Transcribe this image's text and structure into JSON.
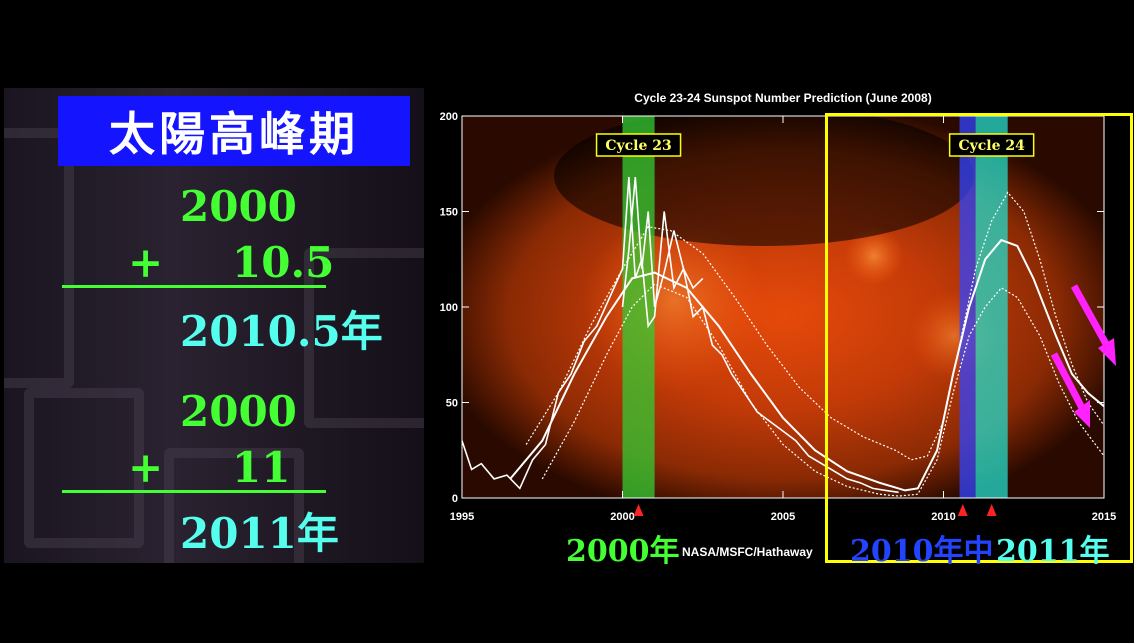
{
  "left": {
    "title": "太陽高峰期",
    "calc1": {
      "base": "2000",
      "op": "+",
      "add": "10.5",
      "result": "2010.5年"
    },
    "calc2": {
      "base": "2000",
      "op": "+",
      "add": "11",
      "result": "2011年"
    }
  },
  "captions": {
    "c2000": "2000年",
    "credit": "NASA/MSFC/Hathaway",
    "c2010": "2010年中",
    "c2011": "2011年"
  },
  "chart_data": {
    "type": "line",
    "title": "Cycle 23-24 Sunspot Number Prediction (June 2008)",
    "xlabel": "",
    "ylabel": "",
    "xlim": [
      1995,
      2015
    ],
    "ylim": [
      0,
      200
    ],
    "xticks": [
      1995,
      2000,
      2005,
      2010,
      2015
    ],
    "yticks": [
      0,
      50,
      100,
      150,
      200
    ],
    "grid": false,
    "annotations": [
      "Cycle 23",
      "Cycle 24"
    ],
    "colors": {
      "observed": "#ffffff",
      "band23": "#33cc33",
      "band24a": "#3344ff",
      "band24b": "#22ddcc",
      "highlight": "#ffff00",
      "arrow": "#ff22ff",
      "marker": "#ff2222"
    },
    "bands": [
      {
        "label": "Cycle 23",
        "x0": 2000.0,
        "x1": 2001.0
      },
      {
        "label": "",
        "x0": 2010.5,
        "x1": 2011.0
      },
      {
        "label": "Cycle 24",
        "x0": 2011.0,
        "x1": 2012.0
      }
    ],
    "markers": [
      2000.5,
      2010.6,
      2011.5
    ],
    "series": [
      {
        "x": [
          1995.0,
          1995.3,
          1995.6,
          1996.0,
          1996.4,
          1996.8,
          1997.2,
          1997.6,
          1998.0,
          1998.4,
          1998.8,
          1999.2,
          1999.6,
          2000.0,
          2000.2,
          2000.4,
          2000.6,
          2000.8,
          2001.0,
          2001.3,
          2001.6,
          2001.9,
          2002.2,
          2002.5,
          2002.8,
          2003.1,
          2003.4,
          2003.8,
          2004.2,
          2004.6,
          2005.0,
          2005.4,
          2005.8,
          2006.2,
          2006.6,
          2007.0,
          2007.4,
          2007.8,
          2008.2,
          2008.6
        ],
        "values": [
          30,
          15,
          18,
          10,
          12,
          5,
          20,
          28,
          55,
          65,
          82,
          90,
          105,
          120,
          168,
          115,
          125,
          90,
          95,
          150,
          110,
          120,
          95,
          100,
          80,
          75,
          65,
          55,
          45,
          40,
          35,
          30,
          22,
          18,
          14,
          10,
          8,
          5,
          4,
          3
        ]
      },
      {
        "x": [
          2000.0,
          2000.2,
          2000.4,
          2000.6,
          2000.8,
          2001.0,
          2001.3,
          2001.6,
          2001.9,
          2002.2,
          2002.5
        ],
        "values": [
          100,
          130,
          168,
          120,
          150,
          100,
          118,
          140,
          120,
          110,
          115
        ]
      },
      {
        "x": [
          1997.0,
          1998,
          1999,
          2000,
          2000.8,
          2001.5,
          2002.5,
          2003.5,
          2004.5,
          2005.5,
          2006.5,
          2007.5,
          2008.5,
          2009.0,
          2009.5,
          2010.0,
          2010.5,
          2011.0,
          2011.5,
          2012.0,
          2012.5,
          2013.0,
          2013.5,
          2014.0,
          2014.5,
          2015.0
        ],
        "values": [
          28,
          55,
          90,
          120,
          142,
          140,
          128,
          105,
          80,
          58,
          42,
          32,
          25,
          20,
          22,
          40,
          80,
          120,
          145,
          160,
          150,
          125,
          95,
          70,
          50,
          38
        ]
      },
      {
        "x": [
          1996.5,
          1997.5,
          1998.5,
          1999.5,
          2000.3,
          2001.0,
          2002.0,
          2003.0,
          2004.0,
          2005.0,
          2006.0,
          2007.0,
          2008.0,
          2008.8,
          2009.2,
          2009.8,
          2010.3,
          2010.8,
          2011.3,
          2011.8,
          2012.3,
          2012.8,
          2013.5,
          2014.0,
          2014.5,
          2015.0
        ],
        "values": [
          10,
          30,
          65,
          95,
          115,
          118,
          110,
          90,
          65,
          42,
          25,
          14,
          8,
          4,
          5,
          25,
          65,
          100,
          125,
          135,
          132,
          115,
          85,
          65,
          55,
          48
        ]
      },
      {
        "x": [
          1997.5,
          1998.5,
          1999.5,
          2000.3,
          2001.0,
          2002.0,
          2003.0,
          2004.0,
          2005.0,
          2006.0,
          2007.0,
          2008.0,
          2008.6,
          2009.2,
          2009.8,
          2010.3,
          2010.8,
          2011.3,
          2011.8,
          2012.3,
          2013.0,
          2013.6,
          2014.2,
          2015.0
        ],
        "values": [
          10,
          40,
          75,
          100,
          112,
          105,
          80,
          50,
          28,
          14,
          6,
          2,
          1,
          2,
          20,
          55,
          85,
          100,
          110,
          105,
          85,
          60,
          40,
          22
        ]
      }
    ]
  }
}
